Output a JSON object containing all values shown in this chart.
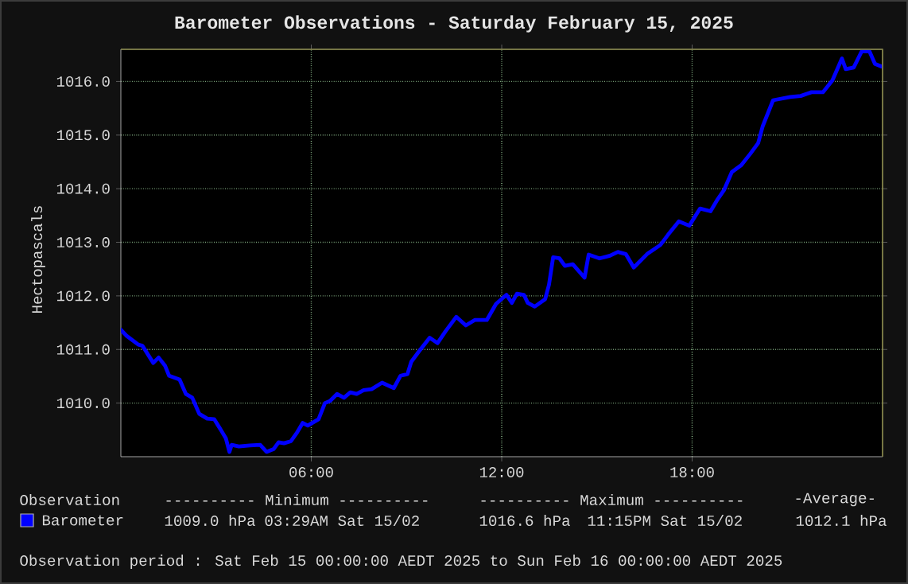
{
  "chart_data": {
    "type": "line",
    "title": "Barometer Observations - Saturday February 15, 2025",
    "ylabel": "Hectopascals",
    "xlim": [
      0,
      24
    ],
    "ylim": [
      1009.0,
      1016.6
    ],
    "xticks": [
      {
        "value": 6,
        "label": "06:00"
      },
      {
        "value": 12,
        "label": "12:00"
      },
      {
        "value": 18,
        "label": "18:00"
      }
    ],
    "yticks": [
      {
        "value": 1010,
        "label": "1010.0"
      },
      {
        "value": 1011,
        "label": "1011.0"
      },
      {
        "value": 1012,
        "label": "1012.0"
      },
      {
        "value": 1013,
        "label": "1013.0"
      },
      {
        "value": 1014,
        "label": "1014.0"
      },
      {
        "value": 1015,
        "label": "1015.0"
      },
      {
        "value": 1016,
        "label": "1016.0"
      }
    ],
    "grid": true,
    "legend": "bottom",
    "marker": "none",
    "line_style": "solid",
    "series": [
      {
        "name": "Barometer",
        "color": "#0000ff",
        "x": [
          0,
          0.17,
          0.55,
          0.68,
          1.02,
          1.19,
          1.39,
          1.52,
          1.85,
          2.05,
          2.25,
          2.47,
          2.72,
          2.94,
          3.14,
          3.31,
          3.42,
          3.49,
          3.72,
          4.06,
          4.39,
          4.59,
          4.81,
          4.97,
          5.14,
          5.36,
          5.56,
          5.73,
          5.89,
          6.23,
          6.43,
          6.59,
          6.81,
          7.03,
          7.23,
          7.43,
          7.65,
          7.9,
          8.23,
          8.6,
          8.81,
          9.03,
          9.15,
          9.4,
          9.73,
          9.98,
          10.23,
          10.57,
          10.87,
          11.15,
          11.53,
          11.82,
          12.15,
          12.32,
          12.48,
          12.7,
          12.82,
          13.04,
          13.37,
          13.49,
          13.62,
          13.82,
          13.99,
          14.24,
          14.61,
          14.74,
          15.08,
          15.41,
          15.66,
          15.91,
          16.16,
          16.58,
          17.0,
          17.24,
          17.58,
          17.91,
          18.25,
          18.58,
          18.78,
          19.0,
          19.25,
          19.55,
          19.83,
          20.08,
          20.22,
          20.55,
          21.09,
          21.42,
          21.76,
          22.12,
          22.42,
          22.72,
          22.84,
          23.09,
          23.34,
          23.59,
          23.76,
          23.96
        ],
        "values": [
          1011.37,
          1011.26,
          1011.09,
          1011.07,
          1010.75,
          1010.85,
          1010.7,
          1010.51,
          1010.44,
          1010.17,
          1010.1,
          1009.8,
          1009.71,
          1009.7,
          1009.51,
          1009.34,
          1009.09,
          1009.22,
          1009.19,
          1009.21,
          1009.22,
          1009.09,
          1009.14,
          1009.27,
          1009.25,
          1009.29,
          1009.46,
          1009.63,
          1009.58,
          1009.7,
          1010.0,
          1010.04,
          1010.17,
          1010.1,
          1010.2,
          1010.17,
          1010.24,
          1010.26,
          1010.38,
          1010.28,
          1010.51,
          1010.54,
          1010.77,
          1010.97,
          1011.22,
          1011.12,
          1011.34,
          1011.61,
          1011.45,
          1011.55,
          1011.55,
          1011.85,
          1012.02,
          1011.87,
          1012.04,
          1012.02,
          1011.87,
          1011.8,
          1011.94,
          1012.21,
          1012.72,
          1012.7,
          1012.56,
          1012.59,
          1012.34,
          1012.77,
          1012.7,
          1012.75,
          1012.82,
          1012.78,
          1012.53,
          1012.78,
          1012.95,
          1013.14,
          1013.39,
          1013.31,
          1013.63,
          1013.58,
          1013.78,
          1013.97,
          1014.31,
          1014.44,
          1014.65,
          1014.85,
          1015.16,
          1015.65,
          1015.71,
          1015.73,
          1015.8,
          1015.8,
          1016.02,
          1016.43,
          1016.23,
          1016.26,
          1016.56,
          1016.56,
          1016.33,
          1016.28
        ]
      }
    ],
    "annotations": [
      "Observation",
      "---------- Minimum ----------",
      "---------- Maximum ----------",
      "-Average-",
      "1009.0 hPa",
      "03:29AM Sat 15/02",
      "1016.6 hPa",
      "11:15PM Sat 15/02",
      "1012.1 hPa",
      "Observation period : Sat Feb 15 00:00:00 AEDT 2025 to Sun Feb 16 00:00:00 AEDT 2025"
    ]
  }
}
